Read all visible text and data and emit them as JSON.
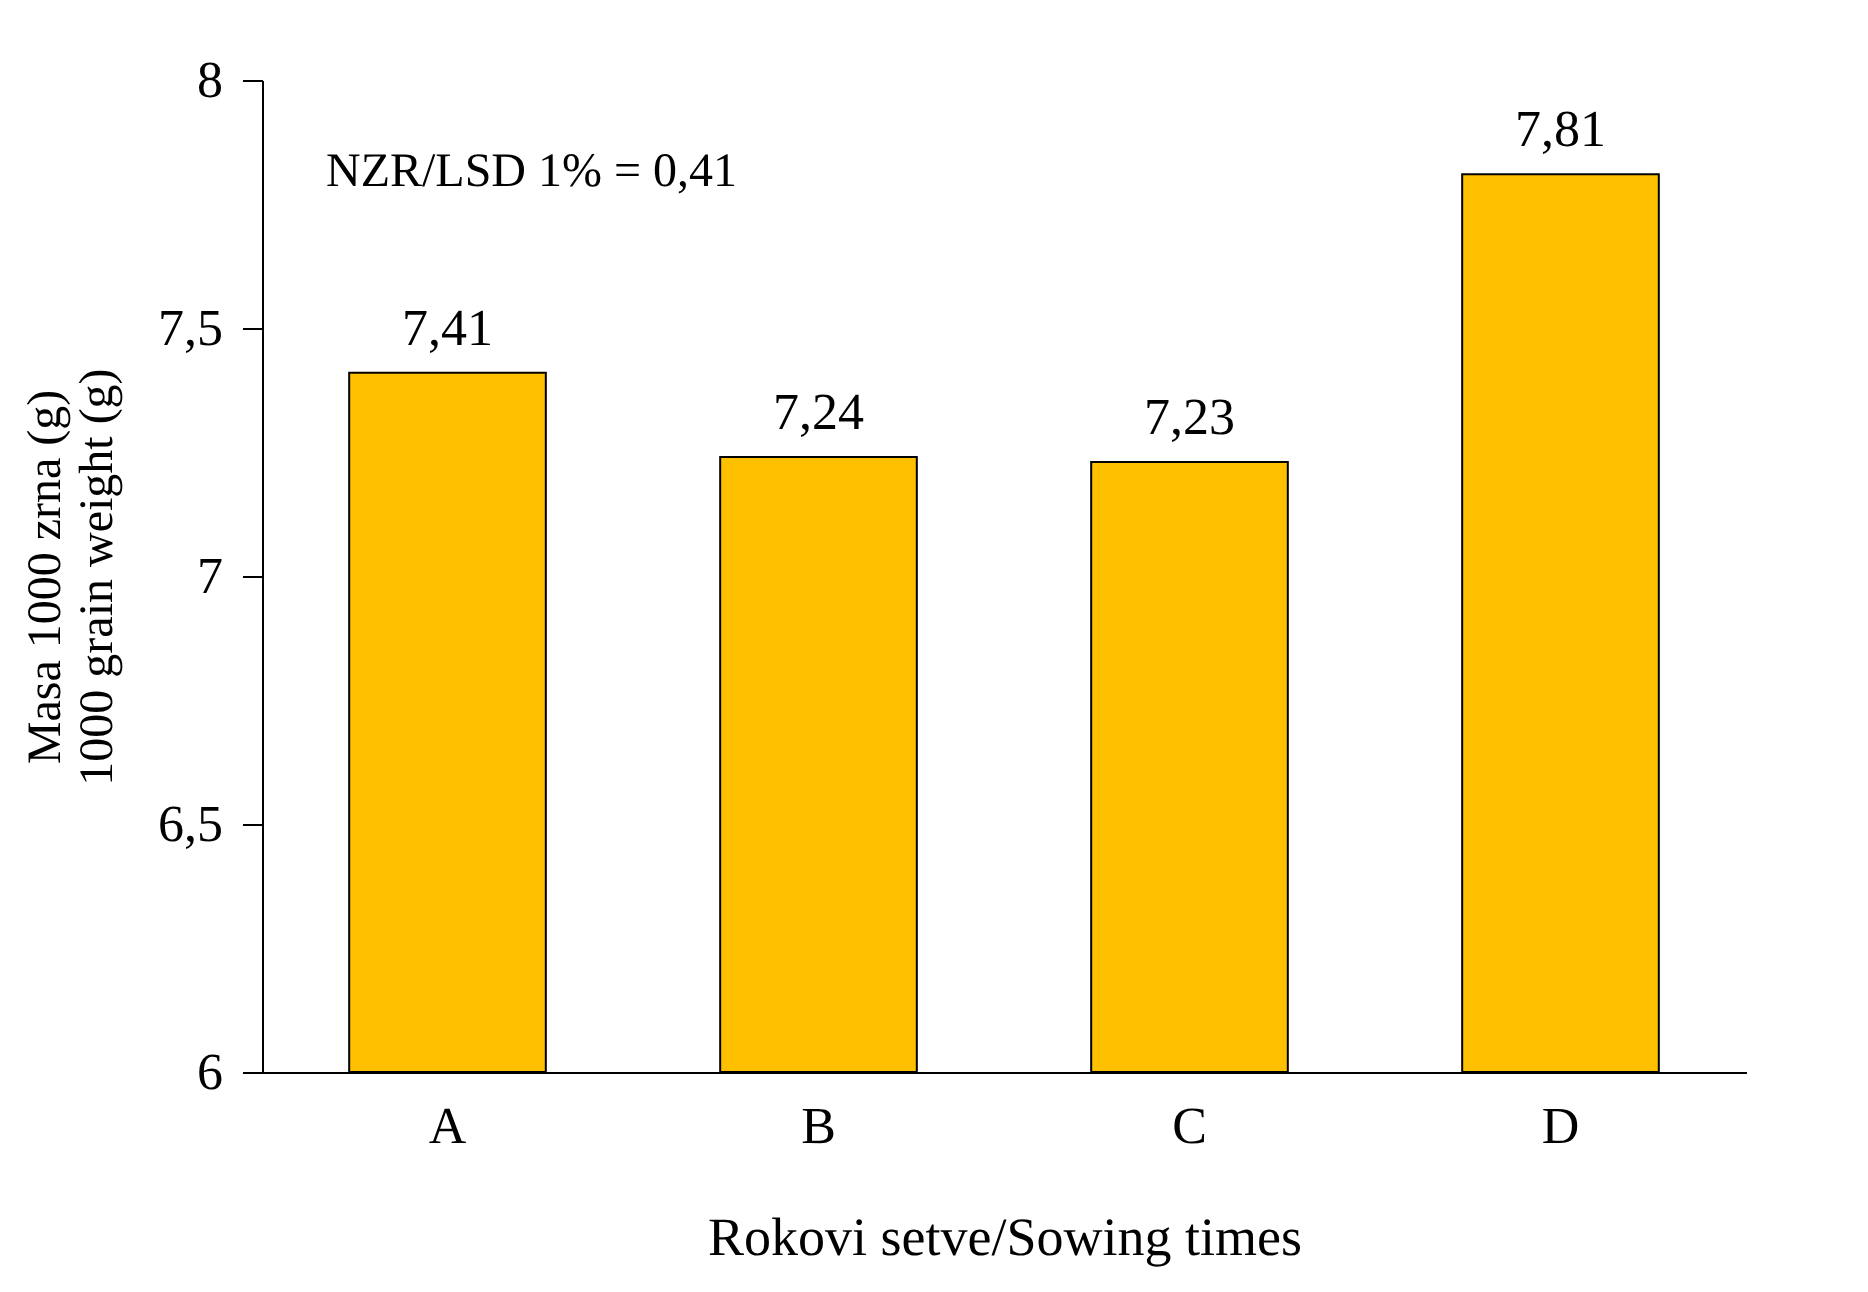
{
  "chart_data": {
    "type": "bar",
    "categories": [
      "A",
      "B",
      "C",
      "D"
    ],
    "values": [
      7.41,
      7.24,
      7.23,
      7.81
    ],
    "value_labels": [
      "7,41",
      "7,24",
      "7,23",
      "7,81"
    ],
    "color": "#ffc000",
    "ylim": [
      6,
      8
    ],
    "yticks": [
      6,
      {
        "value": 6.5,
        "label": "6,5"
      },
      7,
      {
        "value": 7.5,
        "label": "7,5"
      },
      8
    ],
    "xlabel": "Rokovi setve/Sowing times",
    "ylabel": "Masa 1000  zrna (g)\n1000 grain weight (g)",
    "annotations": [
      "NZR/LSD 1% = 0,41"
    ],
    "grid": false
  }
}
